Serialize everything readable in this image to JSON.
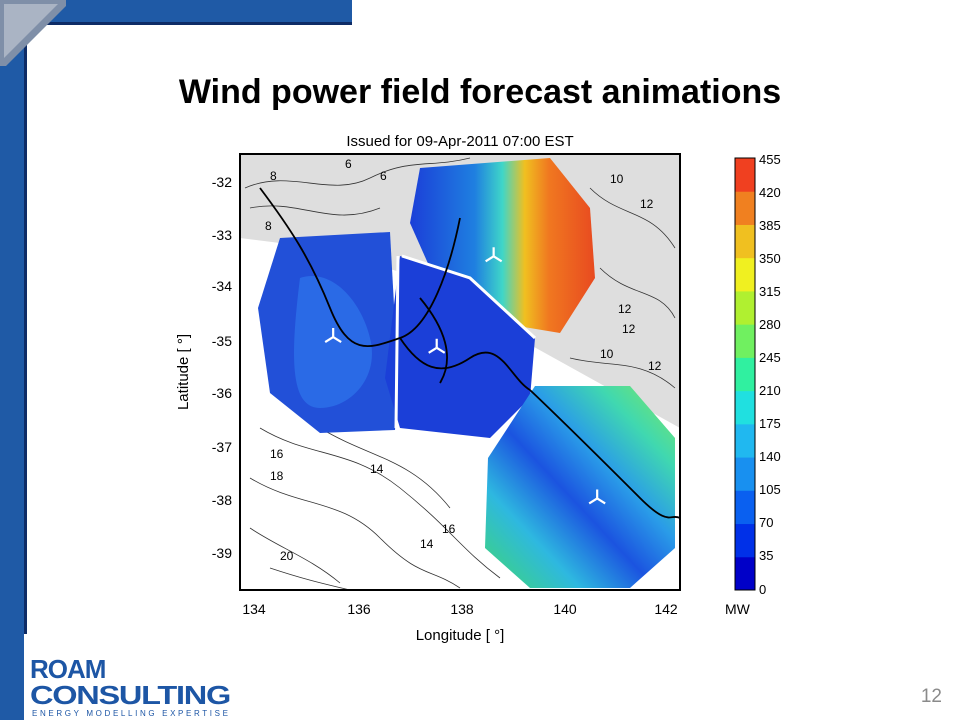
{
  "slide": {
    "title": "Wind power field forecast animations",
    "page_number": "12"
  },
  "figure": {
    "title": "Issued for 09-Apr-2011 07:00 EST",
    "xlabel": "Longitude [ °]",
    "ylabel": "Latitude [ °]",
    "x_ticks": [
      "134",
      "136",
      "138",
      "140",
      "142"
    ],
    "y_ticks": [
      "-32",
      "-33",
      "-34",
      "-35",
      "-36",
      "-37",
      "-38",
      "-39"
    ],
    "colorbar_unit": "MW",
    "colorbar_ticks": [
      "455",
      "420",
      "385",
      "350",
      "315",
      "280",
      "245",
      "210",
      "175",
      "140",
      "105",
      "70",
      "35",
      "0"
    ],
    "contour_labels": [
      "6",
      "6",
      "8",
      "8",
      "10",
      "12",
      "12",
      "12",
      "10",
      "12",
      "16",
      "18",
      "14",
      "14",
      "16",
      "20"
    ]
  },
  "chart_data": {
    "type": "heatmap",
    "title": "Issued for 09-Apr-2011 07:00 EST",
    "xlabel": "Longitude [ °]",
    "ylabel": "Latitude [ °]",
    "xlim": [
      133.8,
      142.3
    ],
    "ylim": [
      -39.6,
      -31.5
    ],
    "colorbar": {
      "unit": "MW",
      "min": 0,
      "max": 455,
      "step": 35
    },
    "wind_farm_regions": [
      {
        "center_lon": 135.6,
        "center_lat": -34.9,
        "value_range": [
          35,
          105
        ]
      },
      {
        "center_lon": 138.6,
        "center_lat": -33.3,
        "value_range": [
          0,
          420
        ]
      },
      {
        "center_lon": 137.5,
        "center_lat": -35.2,
        "value_range": [
          0,
          70
        ]
      },
      {
        "center_lon": 140.6,
        "center_lat": -37.8,
        "value_range": [
          35,
          280
        ]
      }
    ],
    "turbine_markers": [
      {
        "lon": 135.6,
        "lat": -34.9
      },
      {
        "lon": 138.7,
        "lat": -33.4
      },
      {
        "lon": 137.6,
        "lat": -35.1
      },
      {
        "lon": 140.7,
        "lat": -37.9
      }
    ]
  },
  "colors": {
    "frame_blue": "#1f5aa6",
    "frame_navy": "#0e2c66",
    "logo_blue": "#1d56a5",
    "land_gray": "#dedede"
  },
  "logo": {
    "line1": "ROAM",
    "line2": "CONSULTING",
    "tagline": "ENERGY MODELLING EXPERTISE"
  }
}
